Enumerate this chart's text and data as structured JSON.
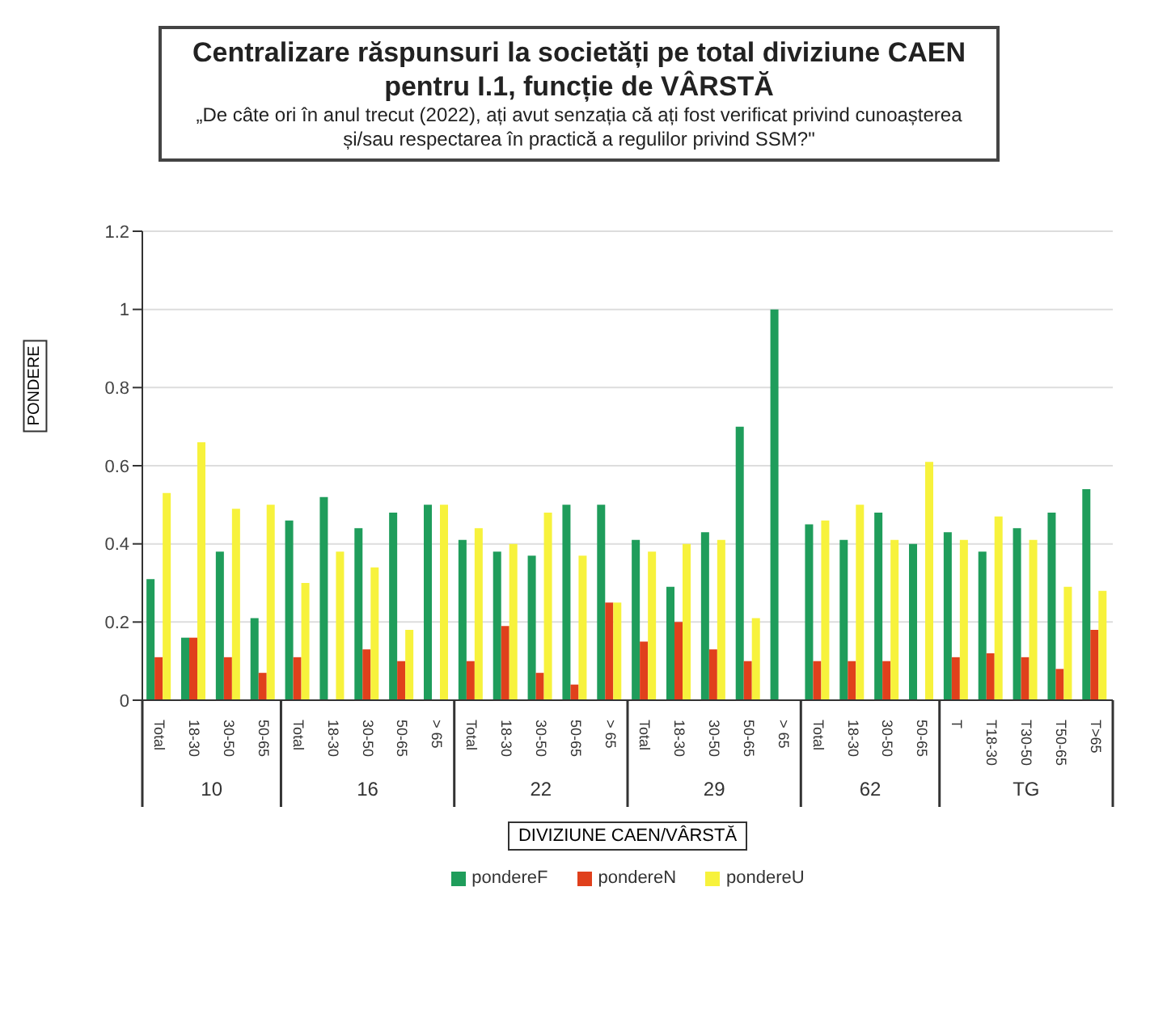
{
  "chart_data": {
    "type": "bar",
    "title": "Centralizare răspunsuri la societăți pe total diviziune CAEN pentru I.1, funcție de VÂRSTĂ",
    "subtitle": "„De câte ori în anul trecut (2022), ați avut senzația că ați fost verificat privind cunoașterea și/sau respectarea în practică a regulilor privind SSM?\"",
    "xlabel": "DIVIZIUNE CAEN/VÂRSTĂ",
    "ylabel": "PONDERE",
    "categories": [
      "Total",
      "18-30",
      "30-50",
      "50-65",
      "Total",
      "18-30",
      "30-50",
      "50-65",
      "> 65",
      "Total",
      "18-30",
      "30-50",
      "50-65",
      "> 65",
      "Total",
      "18-30",
      "30-50",
      "50-65",
      "> 65",
      "Total",
      "18-30",
      "30-50",
      "50-65",
      "T",
      "T18-30",
      "T30-50",
      "T50-65",
      "T>65"
    ],
    "annotations": [
      "10",
      "16",
      "22",
      "29",
      "62",
      "TG"
    ],
    "series": [
      {
        "name": "pondereF",
        "color": "#1f9d5b",
        "values": [
          0.31,
          0.16,
          0.38,
          0.21,
          0.46,
          0.52,
          0.44,
          0.48,
          0.5,
          0.41,
          0.38,
          0.37,
          0.5,
          0.5,
          0.41,
          0.29,
          0.43,
          0.7,
          1.0,
          0.45,
          0.41,
          0.48,
          0.4,
          0.43,
          0.38,
          0.44,
          0.48,
          0.54
        ]
      },
      {
        "name": "pondereN",
        "color": "#e0401c",
        "values": [
          0.11,
          0.16,
          0.11,
          0.07,
          0.11,
          0,
          0.13,
          0.1,
          0,
          0.1,
          0.19,
          0.07,
          0.04,
          0.25,
          0.15,
          0.2,
          0.13,
          0.1,
          0,
          0.1,
          0.1,
          0.1,
          0,
          0.11,
          0.12,
          0.11,
          0.08,
          0.18
        ]
      },
      {
        "name": "pondereU",
        "color": "#f7f23c",
        "values": [
          0.53,
          0.66,
          0.49,
          0.5,
          0.3,
          0.38,
          0.34,
          0.18,
          0.5,
          0.44,
          0.4,
          0.48,
          0.37,
          0.25,
          0.38,
          0.4,
          0.41,
          0.21,
          0,
          0.46,
          0.5,
          0.41,
          0.61,
          0.41,
          0.47,
          0.41,
          0.29,
          0.28
        ]
      }
    ],
    "ylim": [
      0,
      1.2
    ],
    "yticks": [
      0,
      0.2,
      0.4,
      0.6,
      0.8,
      1,
      1.2
    ],
    "grid": "y",
    "legend": "bottom"
  }
}
